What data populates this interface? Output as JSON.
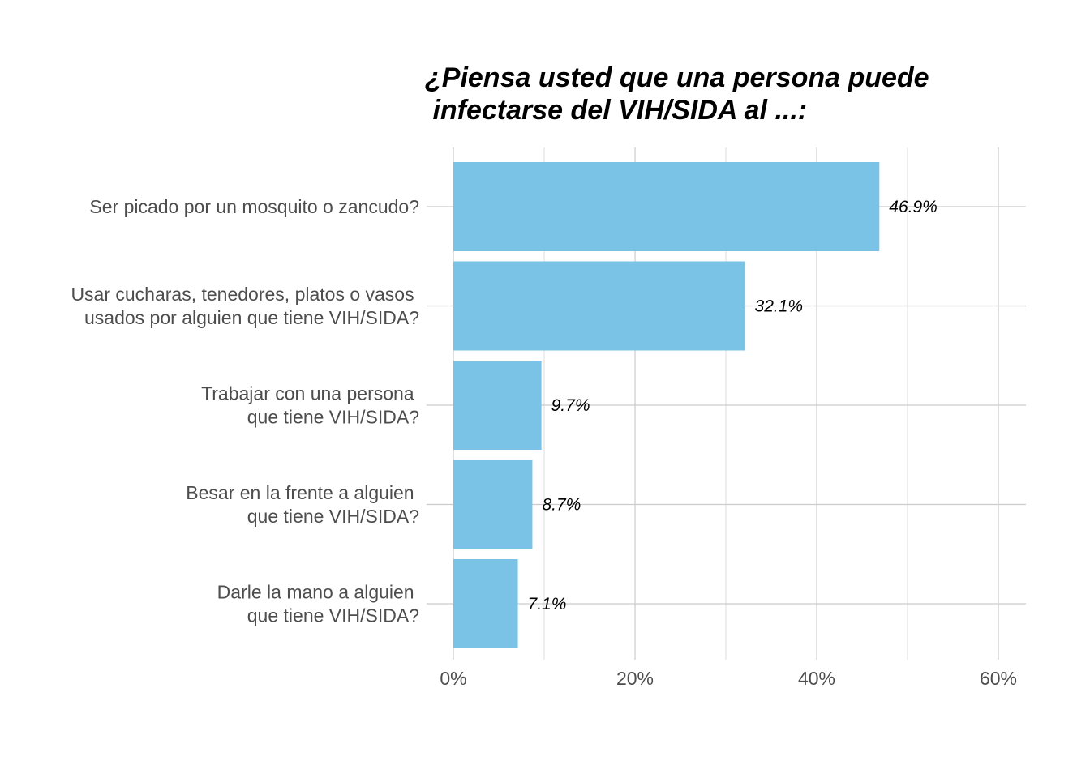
{
  "chart_data": {
    "type": "bar",
    "orientation": "horizontal",
    "title_lines": [
      "¿Piensa usted que una persona puede",
      " infectarse del VIH/SIDA al ...:"
    ],
    "categories": [
      [
        "Ser picado por un mosquito o zancudo?"
      ],
      [
        "Usar cucharas, tenedores, platos o vasos ",
        "usados por alguien que tiene VIH/SIDA?"
      ],
      [
        "Trabajar con una persona ",
        "que tiene VIH/SIDA?"
      ],
      [
        "Besar en la frente a alguien ",
        "que tiene VIH/SIDA?"
      ],
      [
        "Darle la mano a alguien ",
        "que tiene VIH/SIDA?"
      ]
    ],
    "values": [
      46.9,
      32.1,
      9.7,
      8.7,
      7.1
    ],
    "value_labels": [
      "46.9%",
      "32.1%",
      "9.7%",
      "8.7%",
      "7.1%"
    ],
    "xlim": [
      0,
      60
    ],
    "x_ticks": [
      0,
      20,
      40,
      60
    ],
    "x_tick_labels": [
      "0%",
      "20%",
      "40%",
      "60%"
    ],
    "bar_color": "#7AC3E6",
    "grid": true,
    "legend": "none"
  }
}
